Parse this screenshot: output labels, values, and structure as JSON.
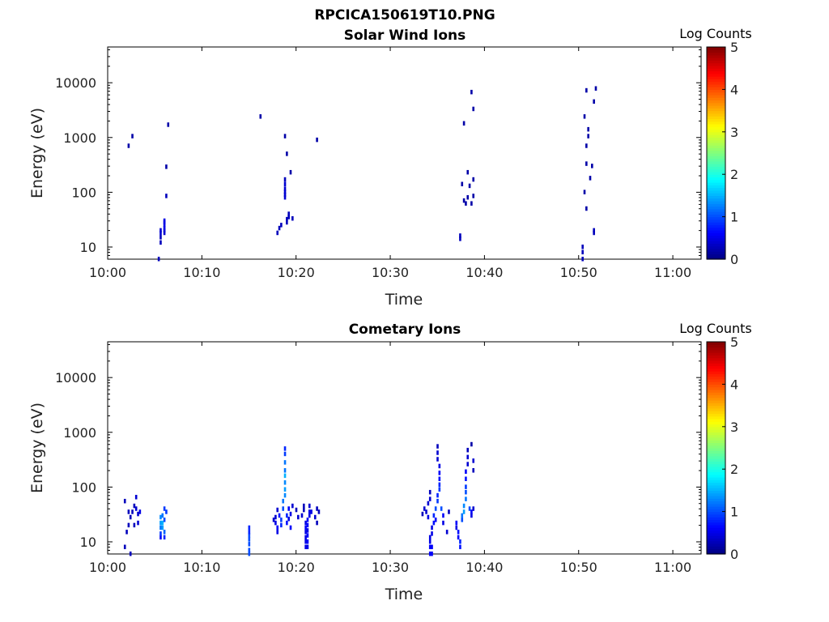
{
  "figure_title": "RPCICA150619T10.PNG",
  "colormap": [
    "#00007f",
    "#0000ff",
    "#007fff",
    "#00ffff",
    "#7fff7f",
    "#ffff00",
    "#ff7f00",
    "#ff0000",
    "#7f0000"
  ],
  "chart_data": [
    {
      "type": "heatmap",
      "title": "Solar Wind Ions",
      "xlabel": "Time",
      "ylabel": "Energy (eV)",
      "x_unit": "minutes after 10:00",
      "xlim": [
        0,
        63
      ],
      "ylim": [
        6,
        45000
      ],
      "yscale": "log",
      "x_ticks": [
        0,
        10,
        20,
        30,
        40,
        50,
        60
      ],
      "x_tick_labels": [
        "10:00",
        "10:10",
        "10:20",
        "10:30",
        "10:40",
        "10:50",
        "11:00"
      ],
      "y_ticks": [
        10,
        100,
        1000,
        10000
      ],
      "y_tick_labels": [
        "10",
        "100",
        "1000",
        "10000"
      ],
      "colorbar": {
        "label": "Log Counts",
        "range": [
          0,
          5
        ],
        "ticks": [
          0,
          1,
          2,
          3,
          4,
          5
        ],
        "tick_labels": [
          "0",
          "1",
          "2",
          "3",
          "4",
          "5"
        ]
      },
      "cells": [
        [
          2.2,
          700,
          0.2
        ],
        [
          2.6,
          1050,
          0.2
        ],
        [
          5.4,
          6,
          0.3
        ],
        [
          5.6,
          12,
          0.3
        ],
        [
          5.6,
          15,
          0.3
        ],
        [
          5.6,
          18,
          0.4
        ],
        [
          5.6,
          20,
          0.4
        ],
        [
          6.0,
          18,
          0.4
        ],
        [
          6.0,
          20,
          0.4
        ],
        [
          6.0,
          22,
          0.5
        ],
        [
          6.0,
          25,
          0.5
        ],
        [
          6.0,
          28,
          0.5
        ],
        [
          6.0,
          30,
          0.5
        ],
        [
          6.2,
          85,
          0.3
        ],
        [
          6.2,
          290,
          0.2
        ],
        [
          6.4,
          1700,
          0.2
        ],
        [
          16.2,
          2400,
          0.2
        ],
        [
          18.0,
          18,
          0.3
        ],
        [
          18.2,
          22,
          0.3
        ],
        [
          18.4,
          25,
          0.3
        ],
        [
          18.8,
          80,
          0.4
        ],
        [
          18.8,
          90,
          0.4
        ],
        [
          18.8,
          100,
          0.4
        ],
        [
          18.8,
          115,
          0.4
        ],
        [
          18.8,
          140,
          0.4
        ],
        [
          18.8,
          170,
          0.3
        ],
        [
          19.0,
          28,
          0.3
        ],
        [
          19.0,
          32,
          0.3
        ],
        [
          19.2,
          35,
          0.3
        ],
        [
          19.2,
          40,
          0.3
        ],
        [
          19.6,
          33,
          0.3
        ],
        [
          19.4,
          230,
          0.2
        ],
        [
          19.0,
          500,
          0.2
        ],
        [
          18.8,
          1050,
          0.2
        ],
        [
          22.2,
          900,
          0.2
        ],
        [
          37.4,
          14,
          0.3
        ],
        [
          37.4,
          16,
          0.3
        ],
        [
          37.6,
          140,
          0.2
        ],
        [
          37.8,
          70,
          0.2
        ],
        [
          38.0,
          62,
          0.2
        ],
        [
          38.2,
          80,
          0.2
        ],
        [
          38.2,
          230,
          0.2
        ],
        [
          38.4,
          130,
          0.2
        ],
        [
          38.6,
          62,
          0.2
        ],
        [
          38.8,
          85,
          0.2
        ],
        [
          38.8,
          170,
          0.2
        ],
        [
          37.8,
          1800,
          0.2
        ],
        [
          38.8,
          3300,
          0.2
        ],
        [
          38.6,
          6700,
          0.2
        ],
        [
          50.4,
          6,
          0.3
        ],
        [
          50.4,
          8,
          0.3
        ],
        [
          50.4,
          10,
          0.3
        ],
        [
          50.6,
          100,
          0.2
        ],
        [
          50.8,
          50,
          0.2
        ],
        [
          51.6,
          18,
          0.3
        ],
        [
          51.6,
          20,
          0.3
        ],
        [
          51.2,
          180,
          0.2
        ],
        [
          50.8,
          330,
          0.2
        ],
        [
          51.4,
          300,
          0.2
        ],
        [
          50.8,
          700,
          0.2
        ],
        [
          51.0,
          1050,
          0.2
        ],
        [
          51.0,
          1400,
          0.2
        ],
        [
          50.6,
          2400,
          0.2
        ],
        [
          50.8,
          7200,
          0.2
        ],
        [
          51.6,
          4500,
          0.2
        ],
        [
          51.8,
          7800,
          0.2
        ]
      ]
    },
    {
      "type": "heatmap",
      "title": "Cometary Ions",
      "xlabel": "Time",
      "ylabel": "Energy (eV)",
      "x_unit": "minutes after 10:00",
      "xlim": [
        0,
        63
      ],
      "ylim": [
        6,
        45000
      ],
      "yscale": "log",
      "x_ticks": [
        0,
        10,
        20,
        30,
        40,
        50,
        60
      ],
      "x_tick_labels": [
        "10:00",
        "10:10",
        "10:20",
        "10:30",
        "10:40",
        "10:50",
        "11:00"
      ],
      "y_ticks": [
        10,
        100,
        1000,
        10000
      ],
      "y_tick_labels": [
        "10",
        "100",
        "1000",
        "10000"
      ],
      "colorbar": {
        "label": "Log Counts",
        "range": [
          0,
          5
        ],
        "ticks": [
          0,
          1,
          2,
          3,
          4,
          5
        ],
        "tick_labels": [
          "0",
          "1",
          "2",
          "3",
          "4",
          "5"
        ]
      },
      "cells": [
        [
          1.8,
          8,
          0.3
        ],
        [
          2.0,
          15,
          0.3
        ],
        [
          2.2,
          20,
          0.3
        ],
        [
          2.4,
          6,
          0.3
        ],
        [
          1.8,
          55,
          0.3
        ],
        [
          2.2,
          35,
          0.3
        ],
        [
          2.4,
          28,
          0.3
        ],
        [
          2.6,
          35,
          0.3
        ],
        [
          2.8,
          45,
          0.3
        ],
        [
          2.8,
          20,
          0.3
        ],
        [
          3.0,
          65,
          0.4
        ],
        [
          3.0,
          40,
          0.4
        ],
        [
          3.2,
          32,
          0.4
        ],
        [
          3.2,
          22,
          0.4
        ],
        [
          3.4,
          35,
          0.5
        ],
        [
          5.6,
          12,
          0.6
        ],
        [
          5.6,
          14,
          0.9
        ],
        [
          5.6,
          18,
          1.2
        ],
        [
          5.6,
          22,
          1.4
        ],
        [
          5.6,
          28,
          1.3
        ],
        [
          5.8,
          18,
          1.4
        ],
        [
          5.8,
          22,
          1.5
        ],
        [
          5.8,
          30,
          1.2
        ],
        [
          6.0,
          12,
          0.8
        ],
        [
          6.0,
          15,
          1.1
        ],
        [
          6.0,
          25,
          1.0
        ],
        [
          6.2,
          35,
          0.9
        ],
        [
          6.0,
          40,
          0.9
        ],
        [
          15.0,
          6,
          1.0
        ],
        [
          15.0,
          7,
          1.0
        ],
        [
          15.0,
          9,
          1.0
        ],
        [
          15.0,
          11,
          1.0
        ],
        [
          15.0,
          13,
          1.0
        ],
        [
          15.0,
          15,
          0.8
        ],
        [
          15.0,
          18,
          0.8
        ],
        [
          17.6,
          25,
          0.4
        ],
        [
          17.8,
          28,
          0.4
        ],
        [
          17.8,
          22,
          0.5
        ],
        [
          18.0,
          18,
          0.6
        ],
        [
          18.0,
          15,
          0.5
        ],
        [
          18.0,
          38,
          0.4
        ],
        [
          18.2,
          30,
          0.7
        ],
        [
          18.4,
          25,
          0.9
        ],
        [
          18.4,
          20,
          0.8
        ],
        [
          18.6,
          40,
          1.0
        ],
        [
          18.6,
          55,
          1.2
        ],
        [
          18.8,
          70,
          1.3
        ],
        [
          18.8,
          90,
          1.4
        ],
        [
          18.8,
          120,
          1.3
        ],
        [
          18.8,
          160,
          1.5
        ],
        [
          18.8,
          200,
          1.2
        ],
        [
          18.8,
          280,
          1.2
        ],
        [
          18.8,
          400,
          0.9
        ],
        [
          18.8,
          500,
          0.8
        ],
        [
          19.0,
          30,
          0.8
        ],
        [
          19.0,
          22,
          0.7
        ],
        [
          19.2,
          40,
          0.6
        ],
        [
          19.2,
          26,
          0.5
        ],
        [
          19.4,
          32,
          0.5
        ],
        [
          19.4,
          18,
          0.6
        ],
        [
          19.6,
          45,
          0.4
        ],
        [
          20.0,
          38,
          0.3
        ],
        [
          20.2,
          28,
          0.4
        ],
        [
          20.6,
          30,
          0.4
        ],
        [
          20.8,
          38,
          0.3
        ],
        [
          20.8,
          45,
          0.3
        ],
        [
          21.0,
          8,
          0.5
        ],
        [
          21.0,
          10,
          0.5
        ],
        [
          21.0,
          12,
          0.5
        ],
        [
          21.0,
          15,
          0.5
        ],
        [
          21.0,
          18,
          0.6
        ],
        [
          21.0,
          22,
          0.5
        ],
        [
          21.2,
          8,
          0.5
        ],
        [
          21.2,
          10,
          0.6
        ],
        [
          21.2,
          13,
          0.6
        ],
        [
          21.2,
          16,
          0.5
        ],
        [
          21.2,
          20,
          0.6
        ],
        [
          21.2,
          25,
          0.6
        ],
        [
          21.4,
          30,
          0.5
        ],
        [
          21.4,
          35,
          0.5
        ],
        [
          21.4,
          45,
          0.4
        ],
        [
          21.6,
          35,
          0.5
        ],
        [
          22.0,
          28,
          0.4
        ],
        [
          22.2,
          40,
          0.3
        ],
        [
          22.2,
          22,
          0.3
        ],
        [
          22.4,
          35,
          0.3
        ],
        [
          33.4,
          32,
          0.3
        ],
        [
          33.6,
          40,
          0.4
        ],
        [
          33.8,
          35,
          0.4
        ],
        [
          34.0,
          28,
          0.5
        ],
        [
          34.0,
          50,
          0.4
        ],
        [
          34.2,
          60,
          0.4
        ],
        [
          34.2,
          80,
          0.3
        ],
        [
          34.2,
          12,
          0.5
        ],
        [
          34.2,
          10,
          0.5
        ],
        [
          34.2,
          8,
          0.6
        ],
        [
          34.2,
          6,
          0.6
        ],
        [
          34.4,
          8,
          0.6
        ],
        [
          34.4,
          6,
          0.6
        ],
        [
          34.4,
          14,
          0.5
        ],
        [
          34.4,
          18,
          0.5
        ],
        [
          34.6,
          22,
          0.7
        ],
        [
          34.6,
          30,
          0.8
        ],
        [
          34.8,
          40,
          1.0
        ],
        [
          34.8,
          25,
          0.6
        ],
        [
          35.0,
          55,
          0.9
        ],
        [
          35.0,
          70,
          0.8
        ],
        [
          35.2,
          90,
          0.9
        ],
        [
          35.2,
          110,
          0.8
        ],
        [
          35.2,
          140,
          0.7
        ],
        [
          35.2,
          180,
          0.6
        ],
        [
          35.2,
          240,
          0.5
        ],
        [
          35.0,
          320,
          0.4
        ],
        [
          35.0,
          420,
          0.4
        ],
        [
          35.0,
          550,
          0.3
        ],
        [
          35.4,
          40,
          1.0
        ],
        [
          35.6,
          30,
          0.6
        ],
        [
          35.6,
          22,
          0.5
        ],
        [
          36.0,
          15,
          0.4
        ],
        [
          36.2,
          35,
          0.3
        ],
        [
          37.0,
          18,
          0.5
        ],
        [
          37.0,
          22,
          0.6
        ],
        [
          37.2,
          15,
          0.7
        ],
        [
          37.2,
          12,
          0.6
        ],
        [
          37.4,
          10,
          0.8
        ],
        [
          37.4,
          8,
          0.7
        ],
        [
          37.6,
          25,
          1.0
        ],
        [
          37.6,
          30,
          1.2
        ],
        [
          37.8,
          35,
          1.4
        ],
        [
          37.8,
          45,
          1.3
        ],
        [
          38.0,
          60,
          1.2
        ],
        [
          38.0,
          80,
          1.0
        ],
        [
          38.0,
          100,
          0.9
        ],
        [
          38.0,
          140,
          0.7
        ],
        [
          38.0,
          190,
          0.6
        ],
        [
          38.2,
          260,
          0.4
        ],
        [
          38.2,
          350,
          0.4
        ],
        [
          38.2,
          470,
          0.3
        ],
        [
          38.4,
          40,
          1.0
        ],
        [
          38.6,
          35,
          0.6
        ],
        [
          38.6,
          30,
          0.5
        ],
        [
          38.8,
          40,
          0.4
        ],
        [
          38.8,
          300,
          0.4
        ],
        [
          38.8,
          200,
          0.3
        ],
        [
          38.6,
          600,
          0.2
        ]
      ]
    }
  ]
}
